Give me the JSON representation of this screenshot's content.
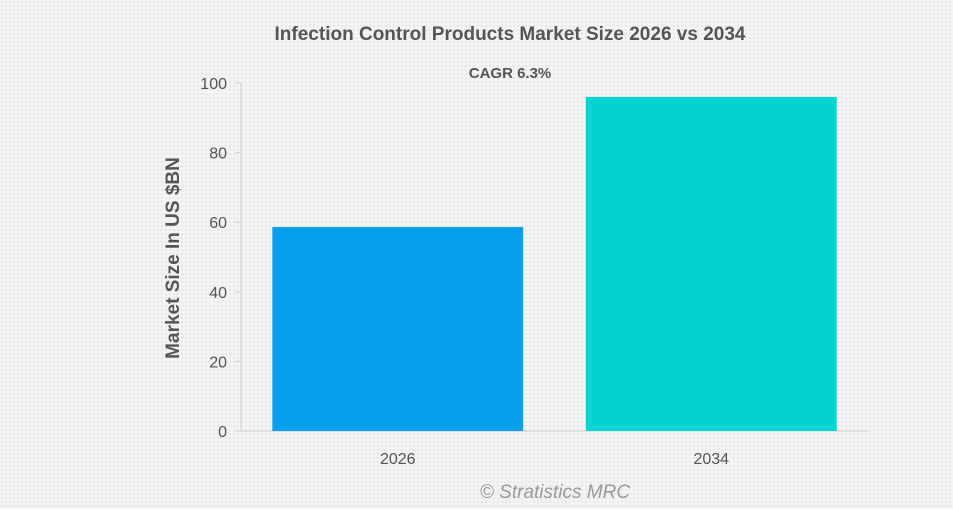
{
  "chart_data": {
    "type": "bar",
    "title": "Infection Control Products Market Size 2026 vs 2034",
    "subtitle": "CAGR 6.3%",
    "categories": [
      "2026",
      "2034"
    ],
    "values": [
      58.6,
      96.0
    ],
    "colors": [
      "#059fec",
      "#02d4d1"
    ],
    "xlabel": "",
    "ylabel": "Market Size In US $BN",
    "ylim": [
      0,
      100
    ],
    "yticks": [
      0,
      20,
      40,
      60,
      80,
      100
    ],
    "grid": false,
    "legend": "none"
  },
  "watermark": "© Stratistics MRC"
}
